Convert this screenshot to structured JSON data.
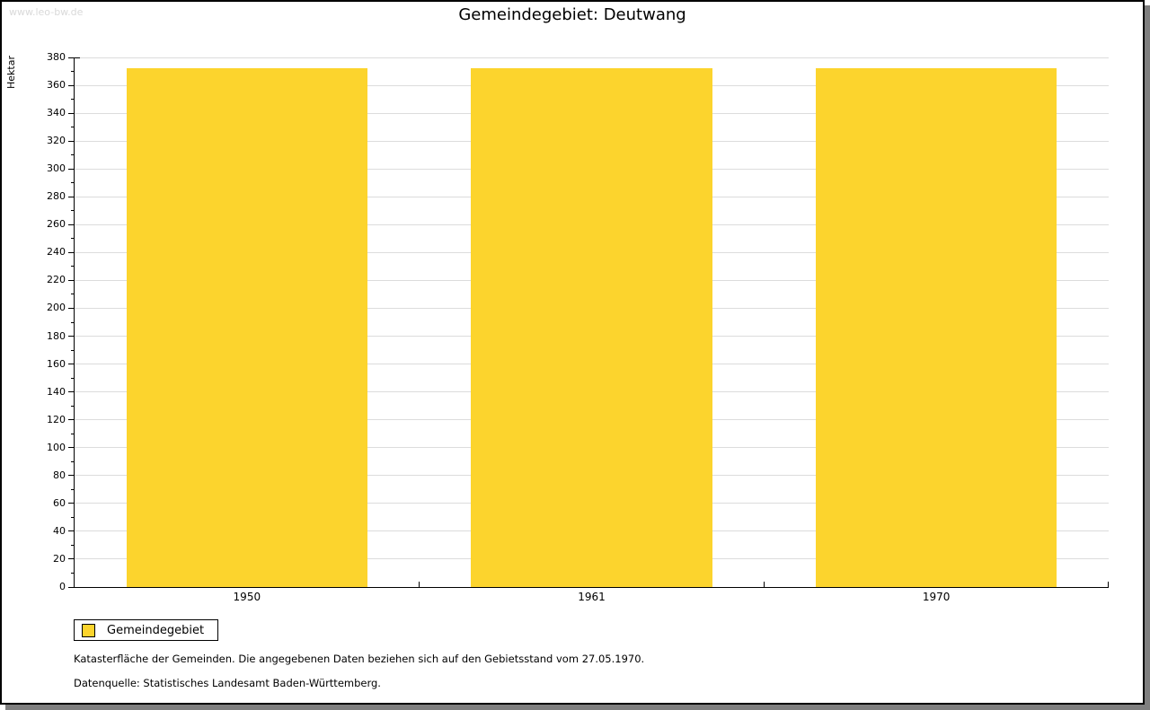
{
  "watermark": "www.leo-bw.de",
  "chart_data": {
    "type": "bar",
    "title": "Gemeindegebiet: Deutwang",
    "xlabel": "",
    "ylabel": "Hektar",
    "categories": [
      "1950",
      "1961",
      "1970"
    ],
    "series": [
      {
        "name": "Gemeindegebiet",
        "values": [
          372,
          372,
          372
        ]
      }
    ],
    "ylim": [
      0,
      380
    ],
    "y_major_step": 20,
    "y_minor_step": 10,
    "grid": true,
    "legend_position": "bottom-left",
    "bar_color": "#FCD42D"
  },
  "legend": {
    "label": "Gemeindegebiet",
    "swatch_color": "#FCD42D"
  },
  "footer": {
    "line1": "Katasterfläche der Gemeinden. Die angegebenen Daten beziehen sich auf den Gebietsstand vom 27.05.1970.",
    "line2": "Datenquelle: Statistisches Landesamt Baden-Württemberg."
  },
  "colors": {
    "bar": "#FCD42D",
    "gridline": "#DCDCDC",
    "axis": "#000000",
    "frame_shadow": "#7F7F7F",
    "watermark": "#D9D9D9"
  }
}
